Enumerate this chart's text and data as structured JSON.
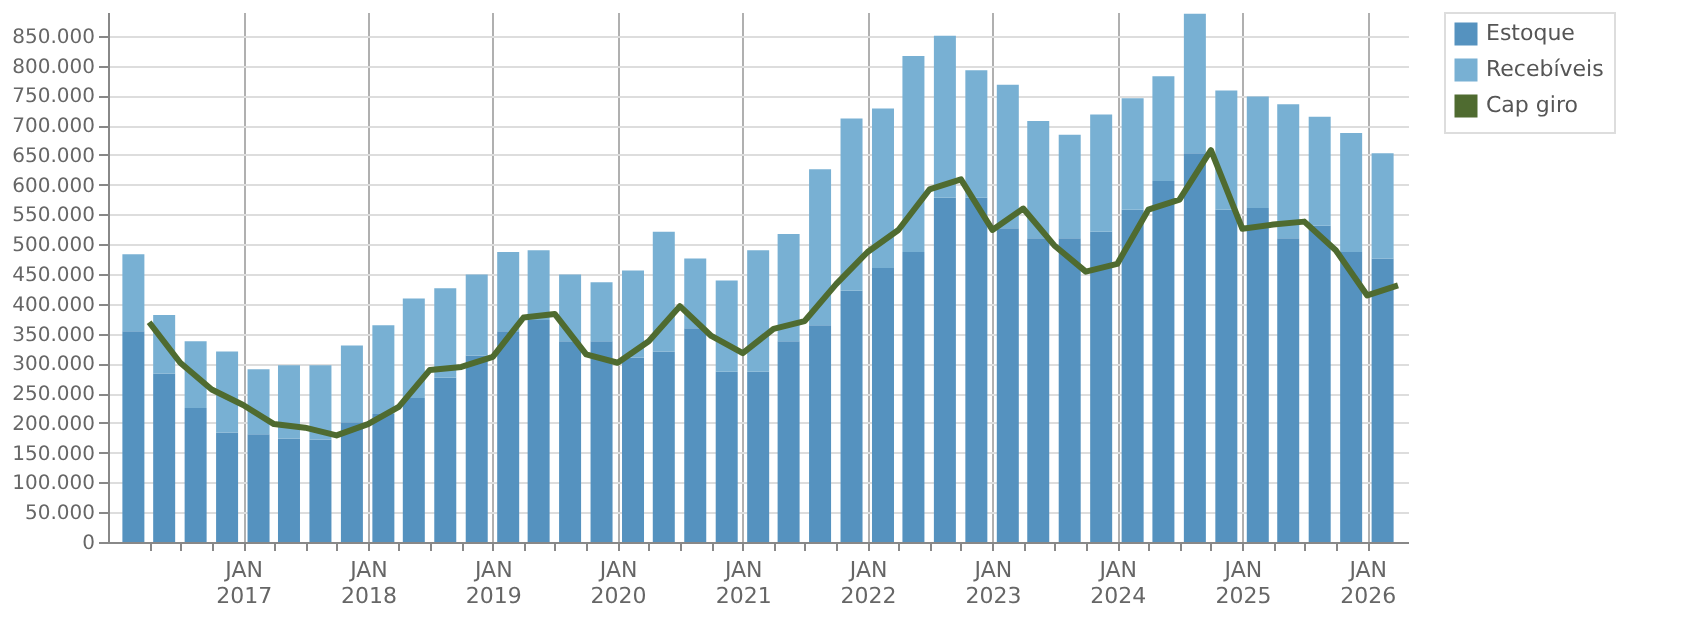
{
  "chart_data": {
    "type": "bar",
    "stacked": true,
    "x": [
      "2016-02-15",
      "2016-05-15",
      "2016-08-15",
      "2016-11-15",
      "2017-02-15",
      "2017-05-15",
      "2017-08-15",
      "2017-11-15",
      "2018-02-15",
      "2018-05-15",
      "2018-08-15",
      "2018-11-15",
      "2019-02-15",
      "2019-05-15",
      "2019-08-15",
      "2019-11-15",
      "2020-02-15",
      "2020-05-15",
      "2020-08-15",
      "2020-11-15",
      "2021-02-15",
      "2021-05-15",
      "2021-08-15",
      "2021-11-15",
      "2022-02-15",
      "2022-05-15",
      "2022-08-15",
      "2022-11-15",
      "2023-02-15",
      "2023-05-15",
      "2023-08-15",
      "2023-11-15",
      "2024-02-15",
      "2024-05-15",
      "2024-08-15",
      "2024-11-15",
      "2025-02-15",
      "2025-05-15",
      "2025-08-15",
      "2025-11-15",
      "2026-02-15"
    ],
    "series": [
      {
        "name": "Estoque",
        "color": "#5592bf",
        "values": [
          354000,
          283000,
          225000,
          184000,
          181000,
          174000,
          172000,
          201000,
          215000,
          242000,
          276000,
          313000,
          354000,
          373000,
          337000,
          337000,
          310000,
          320000,
          359000,
          286000,
          286000,
          337000,
          364000,
          422000,
          460000,
          487000,
          578000,
          578000,
          527000,
          510000,
          510000,
          521000,
          558000,
          606000,
          653000,
          558000,
          561000,
          510000,
          531000,
          487000,
          476000
        ]
      },
      {
        "name": "Recebíveis",
        "color": "#78b0d3",
        "values": [
          129000,
          98000,
          112000,
          136000,
          109000,
          123000,
          125000,
          129000,
          149000,
          167000,
          150000,
          136000,
          133000,
          117000,
          112000,
          99000,
          146000,
          201000,
          117000,
          153000,
          204000,
          180000,
          262000,
          289000,
          268000,
          329000,
          272000,
          214000,
          241000,
          197000,
          174000,
          197000,
          187000,
          176000,
          234000,
          200000,
          187000,
          225000,
          183000,
          200000,
          177000
        ]
      },
      {
        "name": "Cap giro",
        "type": "line",
        "color": "#4f6b30",
        "x": [
          "2016-04-01",
          "2016-07-01",
          "2016-10-01",
          "2017-01-01",
          "2017-04-01",
          "2017-07-01",
          "2017-10-01",
          "2018-01-01",
          "2018-04-01",
          "2018-07-01",
          "2018-10-01",
          "2019-01-01",
          "2019-04-01",
          "2019-07-01",
          "2019-10-01",
          "2020-01-01",
          "2020-04-01",
          "2020-07-01",
          "2020-10-01",
          "2021-01-01",
          "2021-04-01",
          "2021-07-01",
          "2021-10-01",
          "2022-01-01",
          "2022-04-01",
          "2022-07-01",
          "2022-10-01",
          "2023-01-01",
          "2023-04-01",
          "2023-07-01",
          "2023-10-01",
          "2024-01-01",
          "2024-04-01",
          "2024-07-01",
          "2024-10-01",
          "2025-01-01",
          "2025-04-01",
          "2025-07-01",
          "2025-10-01",
          "2026-01-01",
          "2026-04-01"
        ],
        "values": [
          369000,
          301000,
          256000,
          230000,
          198000,
          192000,
          179000,
          198000,
          227000,
          289000,
          294000,
          311000,
          377000,
          383000,
          315000,
          301000,
          337000,
          396000,
          346000,
          317000,
          358000,
          371000,
          433000,
          487000,
          524000,
          592000,
          609000,
          524000,
          560000,
          498000,
          454000,
          467000,
          558000,
          575000,
          658000,
          526000,
          533000,
          538000,
          490000,
          414000,
          431000
        ]
      }
    ],
    "xlim": [
      "2016-01-01",
      "2026-04-01"
    ],
    "xticks": [
      {
        "value": "2016-04-01",
        "label": null
      },
      {
        "value": "2016-07-01",
        "label": null
      },
      {
        "value": "2016-10-01",
        "label": null
      },
      {
        "value": "2017-01-01",
        "label": "JAN 2017"
      },
      {
        "value": "2017-04-01",
        "label": null
      },
      {
        "value": "2017-07-01",
        "label": null
      },
      {
        "value": "2017-10-01",
        "label": null
      },
      {
        "value": "2018-01-01",
        "label": "JAN 2018"
      },
      {
        "value": "2018-04-01",
        "label": null
      },
      {
        "value": "2018-07-01",
        "label": null
      },
      {
        "value": "2018-10-01",
        "label": null
      },
      {
        "value": "2019-01-01",
        "label": "JAN 2019"
      },
      {
        "value": "2019-04-01",
        "label": null
      },
      {
        "value": "2019-07-01",
        "label": null
      },
      {
        "value": "2019-10-01",
        "label": null
      },
      {
        "value": "2020-01-01",
        "label": "JAN 2020"
      },
      {
        "value": "2020-04-01",
        "label": null
      },
      {
        "value": "2020-07-01",
        "label": null
      },
      {
        "value": "2020-10-01",
        "label": null
      },
      {
        "value": "2021-01-01",
        "label": "JAN 2021"
      },
      {
        "value": "2021-04-01",
        "label": null
      },
      {
        "value": "2021-07-01",
        "label": null
      },
      {
        "value": "2021-10-01",
        "label": null
      },
      {
        "value": "2022-01-01",
        "label": "JAN 2022"
      },
      {
        "value": "2022-04-01",
        "label": null
      },
      {
        "value": "2022-07-01",
        "label": null
      },
      {
        "value": "2022-10-01",
        "label": null
      },
      {
        "value": "2023-01-01",
        "label": "JAN 2023"
      },
      {
        "value": "2023-04-01",
        "label": null
      },
      {
        "value": "2023-07-01",
        "label": null
      },
      {
        "value": "2023-10-01",
        "label": null
      },
      {
        "value": "2024-01-01",
        "label": "JAN 2024"
      },
      {
        "value": "2024-04-01",
        "label": null
      },
      {
        "value": "2024-07-01",
        "label": null
      },
      {
        "value": "2024-10-01",
        "label": null
      },
      {
        "value": "2025-01-01",
        "label": "JAN 2025"
      },
      {
        "value": "2025-04-01",
        "label": null
      },
      {
        "value": "2025-07-01",
        "label": null
      },
      {
        "value": "2025-10-01",
        "label": null
      },
      {
        "value": "2026-01-01",
        "label": "JAN 2026"
      }
    ],
    "ylim": [
      0,
      890000
    ],
    "yticks": [
      0,
      {
        "value": 50000,
        "label": "50.000"
      },
      {
        "value": 100000,
        "label": "100.000"
      },
      {
        "value": 150000,
        "label": "150.000"
      },
      {
        "value": 200000,
        "label": "200.000"
      },
      {
        "value": 250000,
        "label": "250.000"
      },
      {
        "value": 300000,
        "label": "300.000"
      },
      {
        "value": 350000,
        "label": "350.000"
      },
      {
        "value": 400000,
        "label": "400.000"
      },
      {
        "value": 450000,
        "label": "450.000"
      },
      {
        "value": 500000,
        "label": "500.000"
      },
      {
        "value": 550000,
        "label": "550.000"
      },
      {
        "value": 600000,
        "label": "600.000"
      },
      {
        "value": 650000,
        "label": "650.000"
      },
      {
        "value": 700000,
        "label": "700.000"
      },
      {
        "value": 750000,
        "label": "750.000"
      },
      {
        "value": 800000,
        "label": "800.000"
      },
      {
        "value": 850000,
        "label": "850.000"
      }
    ],
    "grid": true,
    "legend": "right",
    "marker": "none",
    "line_style": "solid"
  }
}
